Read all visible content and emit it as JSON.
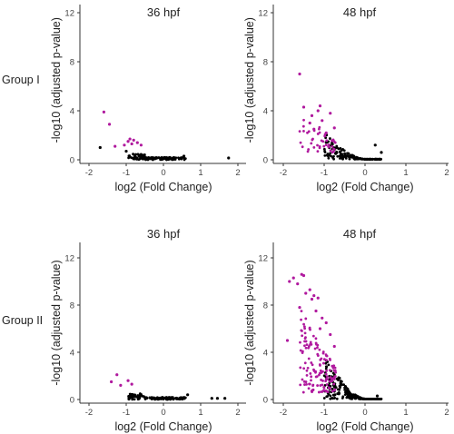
{
  "row_labels": [
    "Group I",
    "Group II"
  ],
  "colors": {
    "significant": "#b0199e",
    "non_significant": "#000000",
    "axis": "#333333"
  },
  "chart_data": [
    {
      "type": "scatter",
      "group": "Group I",
      "title": "36 hpf",
      "xlabel": "log2 (Fold Change)",
      "ylabel": "-log10 (adjusted p-value)",
      "xlim": [
        -2.3,
        2.3
      ],
      "ylim": [
        0,
        13
      ],
      "xticks": [
        -2,
        -1,
        0,
        1,
        2
      ],
      "yticks": [
        0,
        4,
        8,
        12
      ],
      "grid": false,
      "series": [
        {
          "x": [
            -1.6,
            -1.45,
            -1.3,
            -1.05,
            -0.95,
            -0.9,
            -0.85,
            -0.8,
            -0.7,
            -0.6
          ],
          "y": [
            3.9,
            2.9,
            1.1,
            1.2,
            1.5,
            1.7,
            1.3,
            1.6,
            1.4,
            1.2
          ],
          "color": "#b0199e"
        },
        {
          "x": [
            -1.7,
            -1.0,
            0.55,
            1.75
          ],
          "y": [
            1.0,
            0.7,
            0.3,
            0.15
          ],
          "color": "#000000"
        }
      ]
    },
    {
      "type": "scatter",
      "group": "Group I",
      "title": "48 hpf",
      "xlabel": "log2 (Fold Change)",
      "ylabel": "-log10 (adjusted p-value)",
      "xlim": [
        -2.3,
        2.3
      ],
      "ylim": [
        0,
        13
      ],
      "xticks": [
        -2,
        -1,
        0,
        1,
        2
      ],
      "yticks": [
        0,
        4,
        8,
        12
      ],
      "grid": false,
      "series": [
        {
          "x": [
            -1.6,
            -1.5,
            -1.35,
            -1.25,
            -1.15,
            -1.05,
            -0.95,
            -0.85,
            -0.75,
            -1.3,
            -1.1
          ],
          "y": [
            7.0,
            4.3,
            3.0,
            2.5,
            4.0,
            3.2,
            2.2,
            3.8,
            2.6,
            3.6,
            4.4
          ],
          "color": "#b0199e"
        },
        {
          "x": [
            0.25,
            0.4
          ],
          "y": [
            1.2,
            0.6
          ],
          "color": "#000000"
        }
      ]
    },
    {
      "type": "scatter",
      "group": "Group II",
      "title": "36 hpf",
      "xlabel": "log2 (Fold Change)",
      "ylabel": "-log10 (adjusted p-value)",
      "xlim": [
        -2.3,
        2.3
      ],
      "ylim": [
        0,
        13
      ],
      "xticks": [
        -2,
        -1,
        0,
        1,
        2
      ],
      "yticks": [
        0,
        4,
        8,
        12
      ],
      "grid": false,
      "series": [
        {
          "x": [
            -1.4,
            -1.25,
            -1.15,
            -0.95,
            -0.85
          ],
          "y": [
            1.5,
            2.1,
            1.2,
            1.6,
            1.3
          ],
          "color": "#b0199e"
        },
        {
          "x": [
            0.65,
            1.3,
            1.45,
            1.65
          ],
          "y": [
            0.4,
            0.1,
            0.1,
            0.1
          ],
          "color": "#000000"
        }
      ]
    },
    {
      "type": "scatter",
      "group": "Group II",
      "title": "48 hpf",
      "xlabel": "log2 (Fold Change)",
      "ylabel": "-log10 (adjusted p-value)",
      "xlim": [
        -2.3,
        2.3
      ],
      "ylim": [
        0,
        13
      ],
      "xticks": [
        -2,
        -1,
        0,
        1,
        2
      ],
      "yticks": [
        0,
        4,
        8,
        12
      ],
      "grid": false,
      "series": [
        {
          "x": [
            -1.85,
            -1.75,
            -1.65,
            -1.55,
            -1.5,
            -1.45,
            -1.35,
            -1.3,
            -1.25,
            -1.2,
            -1.15,
            -1.05,
            -0.95,
            -0.85,
            -0.75,
            -1.9,
            -1.6,
            -1.1
          ],
          "y": [
            10.0,
            10.3,
            9.8,
            10.6,
            10.5,
            9.0,
            9.3,
            8.5,
            8.8,
            7.5,
            8.6,
            6.9,
            6.5,
            5.5,
            4.5,
            5.0,
            7.8,
            6.0
          ],
          "color": "#b0199e"
        },
        {
          "x": [
            0.3
          ],
          "y": [
            0.3
          ],
          "color": "#000000"
        }
      ]
    }
  ]
}
